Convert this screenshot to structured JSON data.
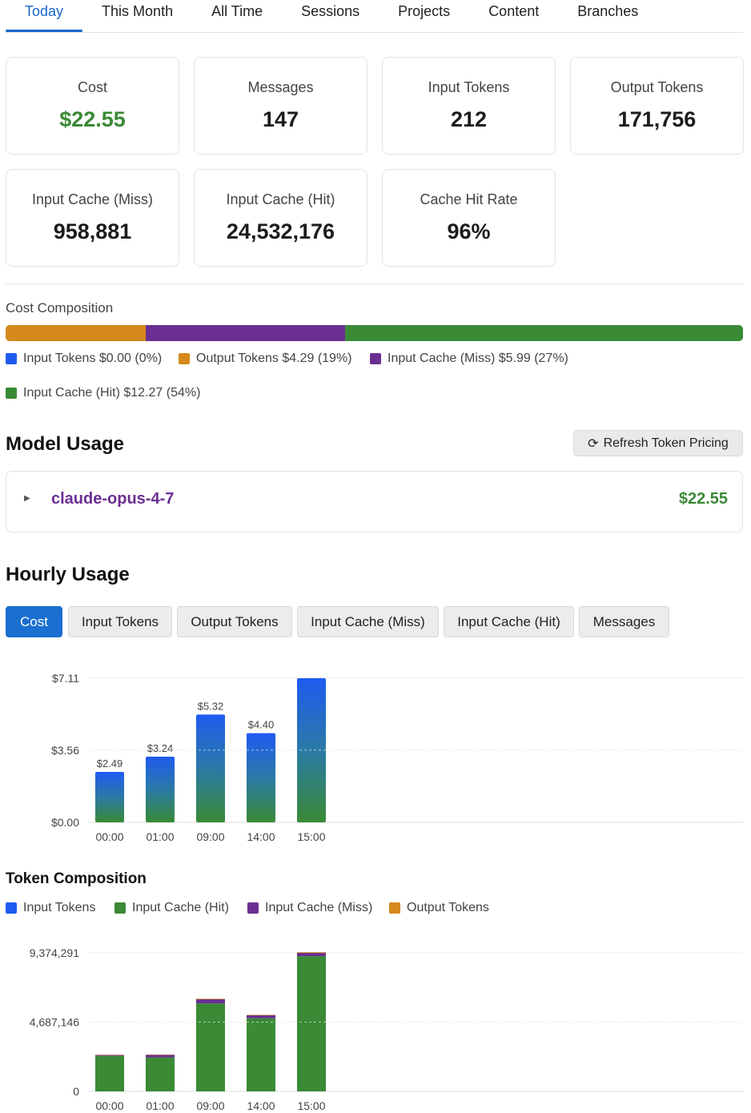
{
  "tabs": [
    {
      "label": "Today",
      "active": true
    },
    {
      "label": "This Month",
      "active": false
    },
    {
      "label": "All Time",
      "active": false
    },
    {
      "label": "Sessions",
      "active": false
    },
    {
      "label": "Projects",
      "active": false
    },
    {
      "label": "Content",
      "active": false
    },
    {
      "label": "Branches",
      "active": false
    }
  ],
  "stats": {
    "cost": {
      "label": "Cost",
      "value": "$22.55"
    },
    "messages": {
      "label": "Messages",
      "value": "147"
    },
    "input_tokens": {
      "label": "Input Tokens",
      "value": "212"
    },
    "output_tokens": {
      "label": "Output Tokens",
      "value": "171,756"
    },
    "cache_miss": {
      "label": "Input Cache (Miss)",
      "value": "958,881"
    },
    "cache_hit": {
      "label": "Input Cache (Hit)",
      "value": "24,532,176"
    },
    "hit_rate": {
      "label": "Cache Hit Rate",
      "value": "96%"
    }
  },
  "cost_composition": {
    "label": "Cost Composition",
    "segments": [
      {
        "name": "Input Tokens",
        "text": "Input Tokens $0.00 (0%)",
        "percent": 0,
        "color": "#1f5bf0"
      },
      {
        "name": "Output Tokens",
        "text": "Output Tokens $4.29 (19%)",
        "percent": 19,
        "color": "#d4891a"
      },
      {
        "name": "Input Cache (Miss)",
        "text": "Input Cache (Miss) $5.99 (27%)",
        "percent": 27,
        "color": "#6b2f93"
      },
      {
        "name": "Input Cache (Hit)",
        "text": "Input Cache (Hit) $12.27 (54%)",
        "percent": 54,
        "color": "#3a8a36"
      }
    ]
  },
  "model_usage": {
    "title": "Model Usage",
    "refresh_label": "Refresh Token Pricing",
    "refresh_icon": "refresh-icon",
    "models": [
      {
        "name": "claude-opus-4-7",
        "cost": "$22.55"
      }
    ]
  },
  "hourly": {
    "title": "Hourly Usage",
    "metrics": [
      {
        "label": "Cost",
        "active": true
      },
      {
        "label": "Input Tokens",
        "active": false
      },
      {
        "label": "Output Tokens",
        "active": false
      },
      {
        "label": "Input Cache (Miss)",
        "active": false
      },
      {
        "label": "Input Cache (Hit)",
        "active": false
      },
      {
        "label": "Messages",
        "active": false
      }
    ]
  },
  "token_composition": {
    "title": "Token Composition",
    "legend": [
      {
        "name": "Input Tokens",
        "color": "#1f5bf0"
      },
      {
        "name": "Input Cache (Hit)",
        "color": "#3a8a36"
      },
      {
        "name": "Input Cache (Miss)",
        "color": "#6b2f93"
      },
      {
        "name": "Output Tokens",
        "color": "#d4891a"
      }
    ]
  },
  "chart_data": [
    {
      "type": "bar",
      "categories": [
        "00:00",
        "01:00",
        "09:00",
        "14:00",
        "15:00"
      ],
      "values": [
        2.49,
        3.24,
        5.32,
        4.4,
        7.11
      ],
      "data_labels": [
        "$2.49",
        "$3.24",
        "$5.32",
        "$4.40",
        ""
      ],
      "yticks": [
        "$0.00",
        "$3.56",
        "$7.11"
      ],
      "ytick_values": [
        0,
        3.56,
        7.11
      ],
      "ylim": [
        0,
        7.11
      ],
      "grid": true
    },
    {
      "type": "bar",
      "stacked": true,
      "categories": [
        "00:00",
        "01:00",
        "09:00",
        "14:00",
        "15:00"
      ],
      "series": [
        {
          "name": "Input Tokens",
          "color": "#1f5bf0",
          "values": [
            10,
            10,
            10,
            10,
            10
          ]
        },
        {
          "name": "Input Cache (Hit)",
          "color": "#3a8a36",
          "values": [
            2400000,
            2300000,
            5950000,
            4950000,
            9150000
          ]
        },
        {
          "name": "Input Cache (Miss)",
          "color": "#6b2f93",
          "values": [
            60000,
            170000,
            280000,
            200000,
            220000
          ]
        },
        {
          "name": "Output Tokens",
          "color": "#d4891a",
          "values": [
            20000,
            20000,
            40000,
            30000,
            50000
          ]
        }
      ],
      "yticks": [
        "0",
        "4,687,146",
        "9,374,291"
      ],
      "ytick_values": [
        0,
        4687146,
        9374291
      ],
      "ylim": [
        0,
        9374291
      ],
      "grid": true
    }
  ]
}
